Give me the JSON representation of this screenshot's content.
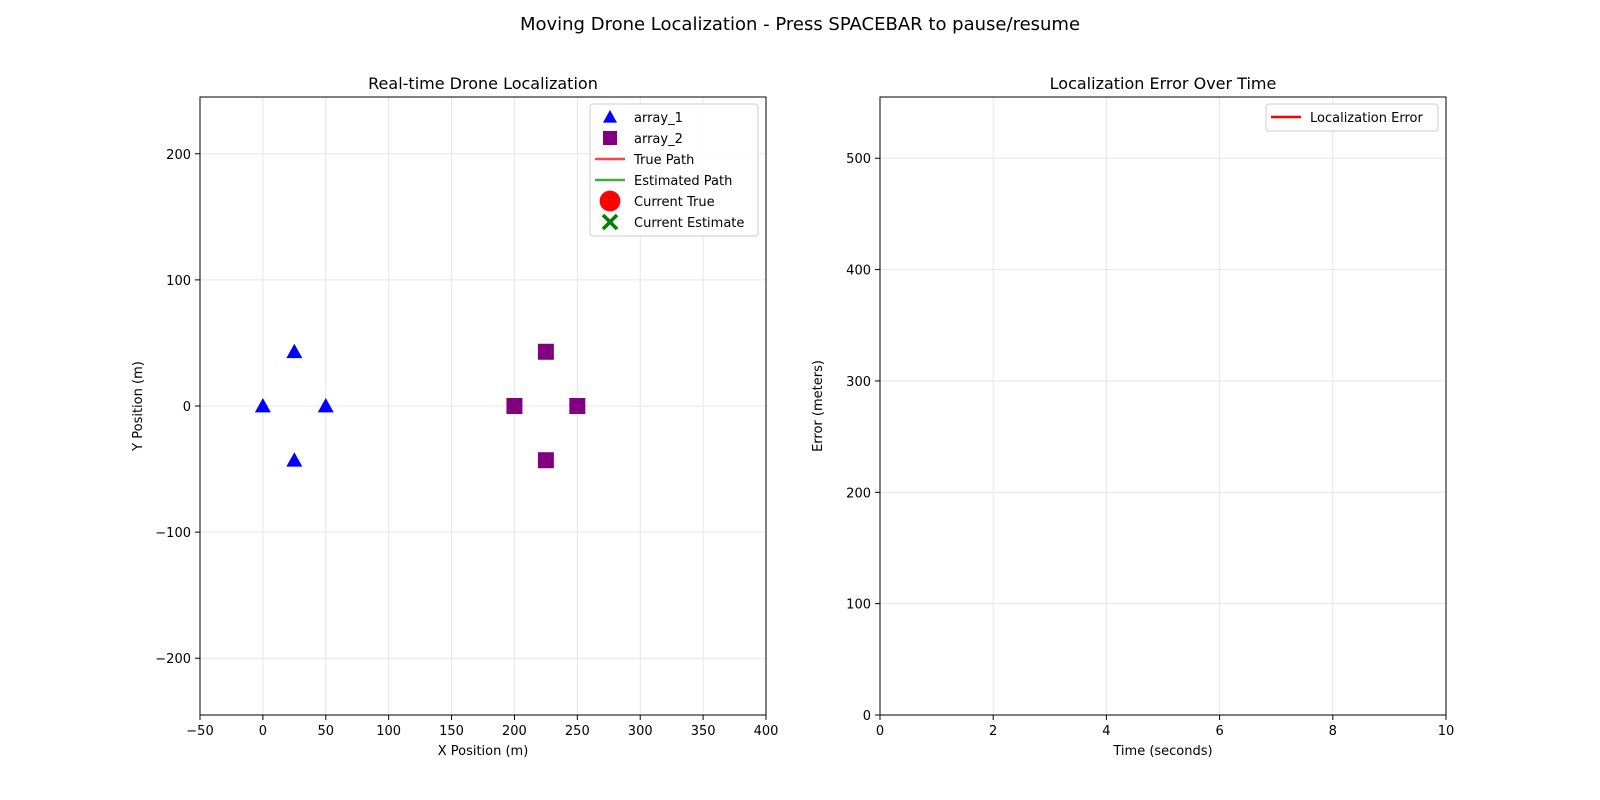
{
  "window": {
    "suptitle": "Moving Drone Localization - Press SPACEBAR to pause/resume"
  },
  "colors": {
    "array_1": "#0000ff",
    "array_2": "#800080",
    "true_path": "#ff4444",
    "estimated_path": "#44aa44",
    "current_true": "#ff0000",
    "current_estimate": "#008000",
    "error_line": "#ff0000",
    "grid": "#e6e6e6"
  },
  "chart_data": [
    {
      "type": "scatter",
      "title": "Real-time Drone Localization",
      "xlabel": "X Position (m)",
      "ylabel": "Y Position (m)",
      "xlim": [
        -50,
        400
      ],
      "ylim": [
        -245,
        245
      ],
      "xticks": [
        -50,
        0,
        50,
        100,
        150,
        200,
        250,
        300,
        350,
        400
      ],
      "yticks": [
        -200,
        -100,
        0,
        100,
        200
      ],
      "grid": true,
      "legend_position": "top-right",
      "series": [
        {
          "name": "array_1",
          "marker": "triangle",
          "points": [
            [
              0,
              0
            ],
            [
              25,
              43
            ],
            [
              50,
              0
            ],
            [
              25,
              -43
            ]
          ]
        },
        {
          "name": "array_2",
          "marker": "square",
          "points": [
            [
              200,
              0
            ],
            [
              225,
              43
            ],
            [
              250,
              0
            ],
            [
              225,
              -43
            ]
          ]
        },
        {
          "name": "True Path",
          "marker": "line",
          "points": []
        },
        {
          "name": "Estimated Path",
          "marker": "line",
          "points": []
        },
        {
          "name": "Current True",
          "marker": "circle",
          "points": []
        },
        {
          "name": "Current Estimate",
          "marker": "x",
          "points": []
        }
      ]
    },
    {
      "type": "line",
      "title": "Localization Error Over Time",
      "xlabel": "Time (seconds)",
      "ylabel": "Error (meters)",
      "xlim": [
        0,
        10
      ],
      "ylim": [
        0,
        555
      ],
      "xticks": [
        0,
        2,
        4,
        6,
        8,
        10
      ],
      "yticks": [
        0,
        100,
        200,
        300,
        400,
        500
      ],
      "grid": true,
      "legend_position": "top-right",
      "series": [
        {
          "name": "Localization Error",
          "x": [],
          "values": []
        }
      ]
    }
  ]
}
